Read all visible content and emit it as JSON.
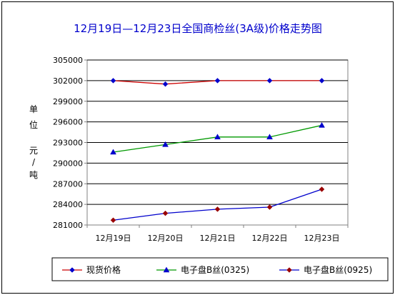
{
  "chart_data": {
    "type": "line",
    "title": "12月19日—12月23日全国商检丝(3A级)价格走势图",
    "ylabel_chars": [
      "单",
      "位",
      "元",
      "/",
      "吨"
    ],
    "xlabel": "",
    "categories": [
      "12月19日",
      "12月20日",
      "12月21日",
      "12月22日",
      "12月23日"
    ],
    "ylim": [
      281000,
      305000
    ],
    "yticks": [
      281000,
      284000,
      287000,
      290000,
      293000,
      296000,
      299000,
      302000,
      305000
    ],
    "grid": true,
    "legend_position": "bottom",
    "series": [
      {
        "name": "现货价格",
        "color": "#cc0000",
        "marker": "diamond",
        "marker_color": "#0000cc",
        "values": [
          302000,
          301500,
          302000,
          302000,
          302000
        ]
      },
      {
        "name": "电子盘B丝(0325)",
        "color": "#009900",
        "marker": "triangle",
        "marker_color": "#0000cc",
        "values": [
          291600,
          292700,
          293800,
          293800,
          295500
        ]
      },
      {
        "name": "电子盘B丝(0925)",
        "color": "#0000cc",
        "marker": "diamond",
        "marker_color": "#990000",
        "values": [
          281700,
          282700,
          283300,
          283600,
          286200
        ]
      }
    ]
  }
}
